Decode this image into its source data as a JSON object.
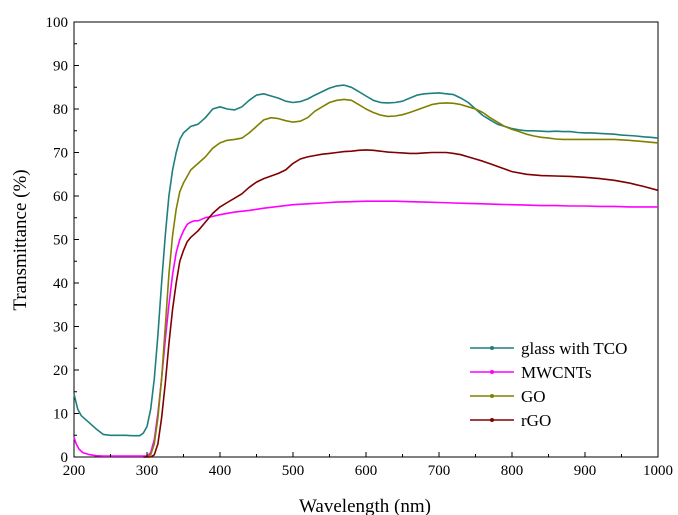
{
  "chart_data": {
    "type": "line",
    "xlabel": "Wavelength (nm)",
    "ylabel": "Transmittance (%)",
    "xlim": [
      200,
      1000
    ],
    "ylim": [
      0,
      100
    ],
    "xticks": [
      200,
      300,
      400,
      500,
      600,
      700,
      800,
      900,
      1000
    ],
    "yticks": [
      0,
      10,
      20,
      30,
      40,
      50,
      60,
      70,
      80,
      90,
      100
    ],
    "grid": false,
    "legend_position": "bottom-right",
    "series": [
      {
        "name": "glass with TCO",
        "color": "#1f7f7f",
        "x": [
          200,
          205,
          210,
          220,
          230,
          240,
          250,
          260,
          270,
          280,
          290,
          295,
          300,
          305,
          310,
          315,
          320,
          325,
          330,
          335,
          340,
          345,
          350,
          360,
          370,
          380,
          390,
          400,
          410,
          420,
          430,
          440,
          450,
          460,
          470,
          480,
          490,
          500,
          510,
          520,
          530,
          540,
          550,
          560,
          570,
          580,
          590,
          600,
          610,
          620,
          630,
          640,
          650,
          660,
          670,
          680,
          690,
          700,
          710,
          720,
          730,
          740,
          750,
          760,
          770,
          780,
          790,
          800,
          810,
          820,
          830,
          840,
          850,
          860,
          870,
          880,
          890,
          900,
          910,
          920,
          930,
          940,
          950,
          960,
          970,
          980,
          990,
          1000
        ],
        "y": [
          14.5,
          11,
          9.5,
          8,
          6.5,
          5.2,
          5,
          5,
          5,
          4.9,
          4.9,
          5.5,
          7,
          11,
          18,
          28,
          40,
          51,
          60,
          66,
          70,
          73,
          74.5,
          76,
          76.5,
          78,
          80,
          80.5,
          80,
          79.8,
          80.5,
          82,
          83.2,
          83.5,
          83,
          82.5,
          81.8,
          81.5,
          81.7,
          82.3,
          83.2,
          84,
          84.8,
          85.3,
          85.5,
          85,
          84,
          83,
          82,
          81.5,
          81.4,
          81.5,
          81.8,
          82.5,
          83.2,
          83.5,
          83.6,
          83.7,
          83.5,
          83.3,
          82.5,
          81.5,
          80,
          78.5,
          77.5,
          76.5,
          76,
          75.5,
          75.2,
          75,
          75,
          74.9,
          74.8,
          74.9,
          74.8,
          74.8,
          74.6,
          74.5,
          74.5,
          74.4,
          74.3,
          74.2,
          74,
          73.9,
          73.8,
          73.6,
          73.5,
          73.3
        ]
      },
      {
        "name": "MWCNTs",
        "color": "#ff00ff",
        "x": [
          200,
          203,
          207,
          212,
          220,
          230,
          240,
          260,
          280,
          290,
          295,
          300,
          305,
          310,
          315,
          320,
          325,
          330,
          335,
          340,
          345,
          350,
          355,
          360,
          365,
          370,
          380,
          390,
          400,
          420,
          440,
          460,
          480,
          500,
          520,
          540,
          560,
          580,
          600,
          620,
          640,
          660,
          680,
          700,
          720,
          740,
          760,
          780,
          800,
          820,
          840,
          860,
          880,
          900,
          920,
          940,
          960,
          980,
          1000
        ],
        "y": [
          4.5,
          3,
          1.8,
          1,
          0.6,
          0.3,
          0.2,
          0.2,
          0.2,
          0.2,
          0.2,
          0.2,
          1,
          4,
          10,
          18,
          27,
          35,
          42,
          47,
          50,
          52,
          53.5,
          54,
          54.3,
          54.3,
          55,
          55.3,
          55.7,
          56.3,
          56.7,
          57.2,
          57.6,
          58,
          58.2,
          58.4,
          58.6,
          58.7,
          58.8,
          58.8,
          58.8,
          58.7,
          58.6,
          58.5,
          58.4,
          58.3,
          58.2,
          58.1,
          58,
          57.9,
          57.8,
          57.8,
          57.7,
          57.7,
          57.6,
          57.6,
          57.5,
          57.5,
          57.5
        ]
      },
      {
        "name": "GO",
        "color": "#808000",
        "x": [
          295,
          300,
          305,
          310,
          315,
          320,
          325,
          330,
          335,
          340,
          345,
          350,
          355,
          360,
          370,
          380,
          390,
          400,
          410,
          420,
          430,
          440,
          450,
          460,
          470,
          480,
          490,
          500,
          510,
          520,
          530,
          540,
          550,
          560,
          570,
          580,
          590,
          600,
          610,
          620,
          630,
          640,
          650,
          660,
          670,
          680,
          690,
          700,
          710,
          720,
          730,
          740,
          750,
          760,
          770,
          780,
          790,
          800,
          810,
          820,
          830,
          840,
          850,
          860,
          870,
          880,
          890,
          900,
          920,
          940,
          960,
          980,
          1000
        ],
        "y": [
          0,
          0,
          0.5,
          3,
          9,
          18,
          30,
          42,
          51,
          57,
          61,
          63,
          64.5,
          66,
          67.5,
          69,
          71,
          72.2,
          72.8,
          73,
          73.3,
          74.5,
          76,
          77.5,
          78,
          77.8,
          77.3,
          77,
          77.2,
          78,
          79.5,
          80.5,
          81.5,
          82,
          82.2,
          82,
          81,
          80,
          79.2,
          78.6,
          78.3,
          78.4,
          78.7,
          79.2,
          79.8,
          80.4,
          81,
          81.3,
          81.4,
          81.3,
          81,
          80.5,
          80,
          79.2,
          78,
          77,
          76,
          75.3,
          74.8,
          74.2,
          73.8,
          73.5,
          73.3,
          73.1,
          73,
          73,
          73,
          73,
          73,
          73,
          72.8,
          72.5,
          72.2
        ]
      },
      {
        "name": "rGO",
        "color": "#7f0000",
        "x": [
          295,
          300,
          305,
          310,
          315,
          320,
          325,
          330,
          335,
          340,
          345,
          350,
          355,
          360,
          370,
          380,
          390,
          400,
          410,
          420,
          430,
          440,
          450,
          460,
          470,
          480,
          490,
          500,
          510,
          520,
          530,
          540,
          550,
          560,
          570,
          580,
          590,
          600,
          610,
          620,
          630,
          640,
          650,
          660,
          670,
          680,
          690,
          700,
          710,
          720,
          730,
          740,
          750,
          760,
          770,
          780,
          790,
          800,
          820,
          840,
          860,
          880,
          900,
          920,
          940,
          960,
          980,
          1000
        ],
        "y": [
          0,
          0,
          0,
          0.5,
          3,
          9,
          17,
          26,
          34,
          40,
          45,
          47.5,
          49.5,
          50.5,
          52,
          54,
          56,
          57.5,
          58.5,
          59.5,
          60.5,
          62,
          63.2,
          64,
          64.6,
          65.2,
          66,
          67.5,
          68.5,
          69,
          69.3,
          69.6,
          69.8,
          70,
          70.2,
          70.3,
          70.5,
          70.6,
          70.5,
          70.3,
          70.1,
          70,
          69.9,
          69.8,
          69.8,
          69.9,
          70,
          70,
          70,
          69.8,
          69.5,
          69,
          68.5,
          68,
          67.4,
          66.8,
          66.2,
          65.6,
          65,
          64.7,
          64.6,
          64.5,
          64.3,
          64,
          63.6,
          63,
          62.2,
          61.3
        ]
      }
    ]
  }
}
